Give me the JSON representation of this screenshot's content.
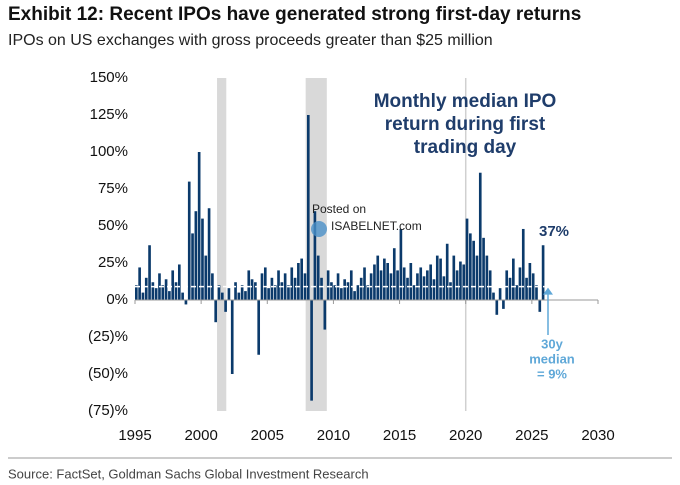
{
  "chart_data": {
    "type": "bar",
    "title": "Exhibit 12: Recent IPOs have generated strong first-day returns",
    "subtitle": "IPOs on US exchanges with gross proceeds greater than $25 million",
    "annotation": [
      "Monthly median IPO",
      "return during first",
      "trading day"
    ],
    "last_label": "37%",
    "median_label": [
      "30y",
      "median",
      "= 9%"
    ],
    "median": 9,
    "watermark": [
      "Posted on",
      "ISABELNET.com"
    ],
    "source": "Source: FactSet, Goldman Sachs Global Investment Research",
    "color": "#0b3a6b",
    "median_color": "#ffffff",
    "label_color": "#1f3d6b",
    "median_label_color": "#5fa8d8",
    "recessions": [
      [
        2001.2,
        2001.9
      ],
      [
        2007.9,
        2009.5
      ]
    ],
    "reference_x": 2020,
    "x": [
      1995,
      1995.25,
      1995.5,
      1995.75,
      1996,
      1996.25,
      1996.5,
      1996.75,
      1997,
      1997.25,
      1997.5,
      1997.75,
      1998,
      1998.25,
      1998.5,
      1998.75,
      1999,
      1999.25,
      1999.5,
      1999.75,
      2000,
      2000.25,
      2000.5,
      2000.75,
      2001,
      2001.25,
      2001.5,
      2001.75,
      2002,
      2002.25,
      2002.5,
      2002.75,
      2003,
      2003.25,
      2003.5,
      2003.75,
      2004,
      2004.25,
      2004.5,
      2004.75,
      2005,
      2005.25,
      2005.5,
      2005.75,
      2006,
      2006.25,
      2006.5,
      2006.75,
      2007,
      2007.25,
      2007.5,
      2007.75,
      2008,
      2008.25,
      2008.5,
      2008.75,
      2009,
      2009.25,
      2009.5,
      2009.75,
      2010,
      2010.25,
      2010.5,
      2010.75,
      2011,
      2011.25,
      2011.5,
      2011.75,
      2012,
      2012.25,
      2012.5,
      2012.75,
      2013,
      2013.25,
      2013.5,
      2013.75,
      2014,
      2014.25,
      2014.5,
      2014.75,
      2015,
      2015.25,
      2015.5,
      2015.75,
      2016,
      2016.25,
      2016.5,
      2016.75,
      2017,
      2017.25,
      2017.5,
      2017.75,
      2018,
      2018.25,
      2018.5,
      2018.75,
      2019,
      2019.25,
      2019.5,
      2019.75,
      2020,
      2020.25,
      2020.5,
      2020.75,
      2021,
      2021.25,
      2021.5,
      2021.75,
      2022,
      2022.25,
      2022.5,
      2022.75,
      2023,
      2023.25,
      2023.5,
      2023.75,
      2024,
      2024.25,
      2024.5,
      2024.75,
      2025,
      2025.25,
      2025.5,
      2025.75
    ],
    "values": [
      10,
      22,
      5,
      15,
      37,
      12,
      8,
      18,
      10,
      14,
      6,
      20,
      12,
      24,
      5,
      -3,
      80,
      45,
      60,
      100,
      55,
      30,
      62,
      18,
      -15,
      10,
      5,
      -8,
      8,
      -50,
      12,
      5,
      10,
      6,
      20,
      14,
      12,
      -37,
      18,
      22,
      8,
      15,
      10,
      20,
      12,
      18,
      10,
      22,
      15,
      25,
      28,
      18,
      125,
      -68,
      60,
      30,
      15,
      -20,
      20,
      12,
      10,
      18,
      8,
      14,
      12,
      20,
      6,
      10,
      15,
      22,
      10,
      18,
      24,
      30,
      20,
      28,
      25,
      18,
      35,
      20,
      48,
      22,
      15,
      25,
      10,
      18,
      22,
      16,
      20,
      24,
      14,
      30,
      28,
      16,
      38,
      12,
      30,
      20,
      26,
      24,
      55,
      45,
      40,
      30,
      86,
      42,
      30,
      20,
      5,
      -10,
      8,
      -6,
      20,
      15,
      28,
      10,
      22,
      48,
      15,
      25,
      18,
      10,
      -8,
      37
    ],
    "xlim": [
      1995,
      2030
    ],
    "xticks": [
      1995,
      2000,
      2005,
      2010,
      2015,
      2020,
      2025,
      2030
    ],
    "ylim": [
      -75,
      150
    ],
    "yticks": [
      {
        "value": -75,
        "label": "(75)%"
      },
      {
        "value": -50,
        "label": "(50)%"
      },
      {
        "value": -25,
        "label": "(25)%"
      },
      {
        "value": 0,
        "label": "0%"
      },
      {
        "value": 25,
        "label": "25%"
      },
      {
        "value": 50,
        "label": "50%"
      },
      {
        "value": 75,
        "label": "75%"
      },
      {
        "value": 100,
        "label": "100%"
      },
      {
        "value": 125,
        "label": "125%"
      },
      {
        "value": 150,
        "label": "150%"
      }
    ]
  }
}
